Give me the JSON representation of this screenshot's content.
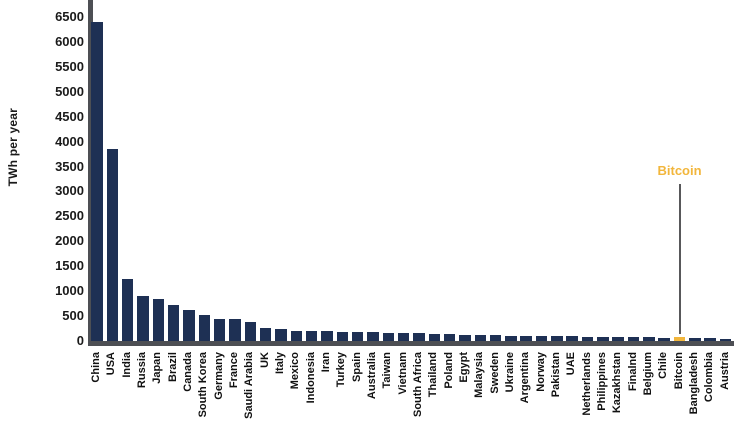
{
  "chart_data": {
    "type": "bar",
    "title": "",
    "xlabel": "",
    "ylabel": "TWh per year",
    "ylim": [
      0,
      6500
    ],
    "ytick_step": 500,
    "yticks": [
      0,
      500,
      1000,
      1500,
      2000,
      2500,
      3000,
      3500,
      4000,
      4500,
      5000,
      5500,
      6000,
      6500
    ],
    "grid": false,
    "legend_position": "none",
    "categories": [
      "China",
      "USA",
      "India",
      "Russia",
      "Japan",
      "Brazil",
      "Canada",
      "South Korea",
      "Germany",
      "France",
      "Saudi Arabia",
      "UK",
      "Italy",
      "Mexico",
      "Indonesia",
      "Iran",
      "Turkey",
      "Spain",
      "Australia",
      "Taiwan",
      "Vietnam",
      "South Africa",
      "Thailand",
      "Poland",
      "Egypt",
      "Malaysia",
      "Sweden",
      "Ukraine",
      "Argentina",
      "Norway",
      "Pakistan",
      "UAE",
      "Netherlands",
      "Philippines",
      "Kazakhstan",
      "Finalnd",
      "Belgium",
      "Chile",
      "Bitcoin",
      "Bangladesh",
      "Colombia",
      "Austria"
    ],
    "values": [
      6400,
      3860,
      1250,
      900,
      840,
      730,
      620,
      530,
      450,
      435,
      380,
      255,
      235,
      210,
      200,
      195,
      190,
      185,
      175,
      170,
      165,
      155,
      145,
      135,
      130,
      125,
      115,
      110,
      105,
      100,
      95,
      95,
      90,
      85,
      80,
      78,
      75,
      70,
      80,
      60,
      55,
      50
    ],
    "colors": {
      "bar": "#1e3054",
      "highlight": "#f2b63c",
      "axis": "#4d4f54",
      "tick_text": "#1a1a1a",
      "annotation_line": "#58585a"
    },
    "highlight": {
      "category": "Bitcoin",
      "annotation_label": "Bitcoin",
      "annotation_color": "#f2b63c"
    }
  }
}
